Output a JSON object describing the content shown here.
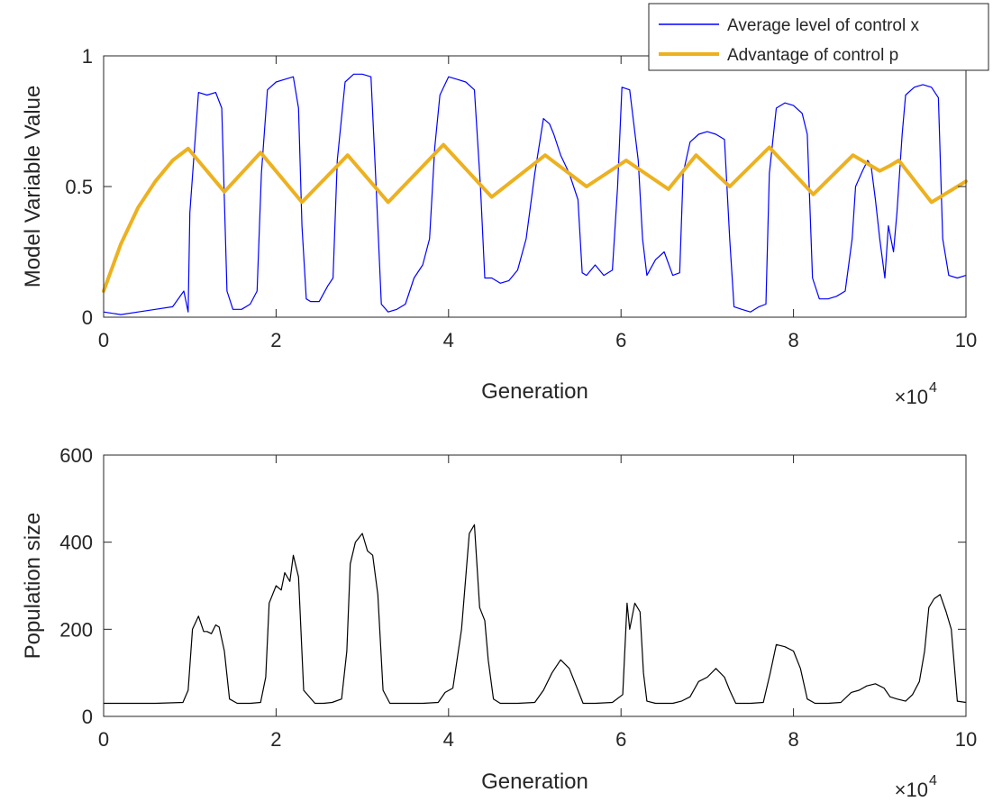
{
  "chart_data": [
    {
      "type": "line",
      "xlabel": "Generation",
      "ylabel": "Model Variable Value",
      "xlim": [
        0,
        100000
      ],
      "ylim": [
        0,
        1
      ],
      "x_ticks": [
        0,
        20000,
        40000,
        60000,
        80000,
        100000
      ],
      "x_tick_labels": [
        "0",
        "2",
        "4",
        "6",
        "8",
        "10"
      ],
      "y_ticks": [
        0,
        0.5,
        1
      ],
      "y_tick_labels": [
        "0",
        "0.5",
        "1"
      ],
      "x_exponent": {
        "base": "×10",
        "power": "4"
      },
      "legend_position": "top-right",
      "grid": false,
      "series": [
        {
          "name": "Average level of control x",
          "color": "#0000ff",
          "x": [
            0,
            2000,
            4000,
            6000,
            8000,
            9300,
            9800,
            10000,
            11000,
            12000,
            13000,
            13700,
            14300,
            15000,
            16000,
            17000,
            17800,
            18300,
            19000,
            20000,
            21000,
            22000,
            22600,
            23000,
            23500,
            24000,
            25000,
            26000,
            26600,
            27100,
            28000,
            29000,
            30000,
            31000,
            31600,
            32200,
            33000,
            34000,
            35000,
            36000,
            37000,
            37800,
            38400,
            39000,
            40000,
            41000,
            42000,
            43000,
            43700,
            44200,
            45000,
            46000,
            47000,
            48000,
            49000,
            50000,
            51000,
            51700,
            52200,
            53000,
            54000,
            55000,
            55500,
            56000,
            57000,
            58000,
            59000,
            59600,
            60100,
            61000,
            62000,
            62500,
            63000,
            64000,
            65000,
            66000,
            66800,
            67200,
            68000,
            69000,
            70000,
            71000,
            72000,
            72600,
            73100,
            74000,
            75000,
            76000,
            76800,
            77200,
            78000,
            79000,
            80000,
            81000,
            81600,
            82200,
            83000,
            84000,
            85000,
            86000,
            86800,
            87200,
            88000,
            88600,
            89000,
            89500,
            90000,
            90600,
            91000,
            91600,
            92000,
            92600,
            93000,
            94000,
            95000,
            96000,
            96800,
            97300,
            98000,
            99000,
            100000
          ],
          "y": [
            0.02,
            0.01,
            0.02,
            0.03,
            0.04,
            0.1,
            0.02,
            0.4,
            0.86,
            0.85,
            0.86,
            0.8,
            0.1,
            0.03,
            0.03,
            0.05,
            0.1,
            0.55,
            0.87,
            0.9,
            0.91,
            0.92,
            0.8,
            0.35,
            0.07,
            0.06,
            0.06,
            0.12,
            0.15,
            0.6,
            0.9,
            0.93,
            0.93,
            0.92,
            0.5,
            0.05,
            0.02,
            0.03,
            0.05,
            0.15,
            0.2,
            0.3,
            0.65,
            0.85,
            0.92,
            0.91,
            0.9,
            0.87,
            0.5,
            0.15,
            0.15,
            0.13,
            0.14,
            0.18,
            0.3,
            0.55,
            0.76,
            0.74,
            0.7,
            0.62,
            0.55,
            0.45,
            0.17,
            0.16,
            0.2,
            0.16,
            0.18,
            0.5,
            0.88,
            0.87,
            0.6,
            0.3,
            0.16,
            0.22,
            0.25,
            0.16,
            0.17,
            0.55,
            0.67,
            0.7,
            0.71,
            0.7,
            0.68,
            0.3,
            0.04,
            0.03,
            0.02,
            0.04,
            0.05,
            0.55,
            0.8,
            0.82,
            0.81,
            0.78,
            0.7,
            0.15,
            0.07,
            0.07,
            0.08,
            0.1,
            0.3,
            0.5,
            0.56,
            0.6,
            0.58,
            0.45,
            0.3,
            0.15,
            0.35,
            0.25,
            0.4,
            0.7,
            0.85,
            0.88,
            0.89,
            0.88,
            0.84,
            0.3,
            0.16,
            0.15,
            0.16
          ]
        },
        {
          "name": "Advantage of control p",
          "color": "#edb120",
          "x": [
            0,
            2000,
            4000,
            6000,
            8000,
            9800,
            14000,
            18200,
            23000,
            28300,
            33000,
            39400,
            45000,
            51200,
            56000,
            60600,
            65500,
            68700,
            72600,
            77200,
            82300,
            86900,
            90000,
            91200,
            92200,
            96000,
            100000
          ],
          "y": [
            0.1,
            0.28,
            0.42,
            0.52,
            0.6,
            0.645,
            0.48,
            0.63,
            0.44,
            0.62,
            0.44,
            0.66,
            0.46,
            0.62,
            0.5,
            0.6,
            0.49,
            0.62,
            0.5,
            0.65,
            0.47,
            0.62,
            0.56,
            0.58,
            0.6,
            0.44,
            0.52
          ]
        }
      ]
    },
    {
      "type": "line",
      "xlabel": "Generation",
      "ylabel": "Population size",
      "xlim": [
        0,
        100000
      ],
      "ylim": [
        0,
        600
      ],
      "x_ticks": [
        0,
        20000,
        40000,
        60000,
        80000,
        100000
      ],
      "x_tick_labels": [
        "0",
        "2",
        "4",
        "6",
        "8",
        "10"
      ],
      "y_ticks": [
        0,
        200,
        400,
        600
      ],
      "y_tick_labels": [
        "0",
        "200",
        "400",
        "600"
      ],
      "x_exponent": {
        "base": "×10",
        "power": "4"
      },
      "grid": false,
      "series": [
        {
          "color": "#000000",
          "x": [
            0,
            3000,
            6000,
            9200,
            9800,
            10300,
            11000,
            11600,
            12000,
            12500,
            13000,
            13400,
            14000,
            14600,
            15500,
            17000,
            18200,
            18800,
            19200,
            20000,
            20600,
            21000,
            21600,
            22000,
            22600,
            23200,
            24500,
            25500,
            26500,
            27600,
            28200,
            28600,
            29200,
            30000,
            30600,
            31200,
            31800,
            32400,
            33200,
            35000,
            37000,
            38800,
            39600,
            40500,
            41500,
            42400,
            43000,
            43600,
            44200,
            44600,
            45200,
            46000,
            48000,
            50000,
            51000,
            52000,
            53000,
            54000,
            55000,
            55600,
            57000,
            59000,
            60200,
            60700,
            61000,
            61600,
            62200,
            62600,
            63000,
            64000,
            66000,
            67000,
            68000,
            69000,
            70000,
            71000,
            72000,
            72600,
            73300,
            75000,
            76500,
            77300,
            78000,
            79000,
            80000,
            80800,
            81600,
            82500,
            84000,
            85500,
            86700,
            87600,
            88500,
            89500,
            90500,
            91200,
            92000,
            93000,
            93800,
            94600,
            95200,
            95700,
            96300,
            97000,
            97700,
            98300,
            99000,
            100000
          ],
          "y": [
            30,
            30,
            30,
            32,
            60,
            200,
            230,
            195,
            195,
            190,
            210,
            205,
            150,
            40,
            30,
            30,
            32,
            90,
            260,
            300,
            290,
            330,
            310,
            370,
            320,
            60,
            30,
            30,
            32,
            40,
            150,
            350,
            400,
            420,
            380,
            370,
            280,
            60,
            30,
            30,
            30,
            32,
            55,
            65,
            200,
            420,
            440,
            250,
            220,
            130,
            40,
            30,
            30,
            32,
            60,
            100,
            130,
            110,
            60,
            30,
            30,
            32,
            50,
            260,
            200,
            260,
            240,
            100,
            35,
            30,
            30,
            35,
            45,
            80,
            90,
            110,
            90,
            60,
            30,
            30,
            32,
            100,
            165,
            160,
            150,
            110,
            40,
            30,
            30,
            32,
            55,
            60,
            70,
            75,
            65,
            45,
            40,
            35,
            50,
            80,
            150,
            250,
            270,
            280,
            240,
            200,
            35,
            32
          ]
        }
      ]
    }
  ]
}
